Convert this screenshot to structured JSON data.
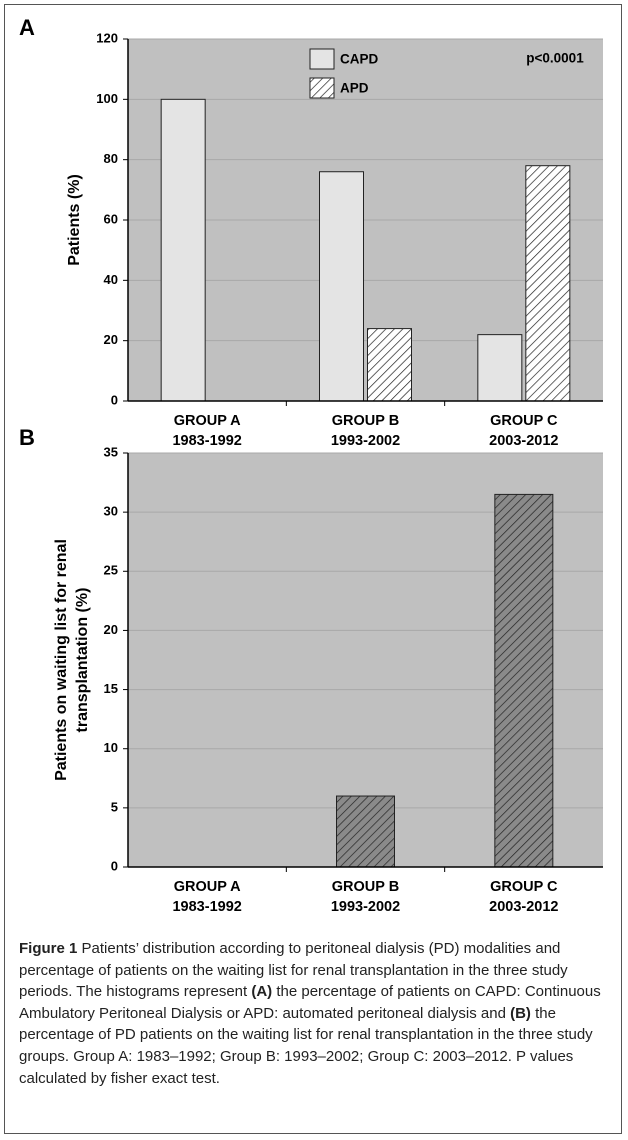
{
  "chart_data": [
    {
      "type": "bar",
      "panel": "A",
      "ylabel": [
        "Patients (%)"
      ],
      "annotation": "p<0.0001",
      "categories": [
        [
          "GROUP A",
          "1983-1992"
        ],
        [
          "GROUP B",
          "1993-2002"
        ],
        [
          "GROUP C",
          "2003-2012"
        ]
      ],
      "series": [
        {
          "name": "CAPD",
          "color": "#e4e4e4",
          "hatch": false,
          "values": [
            100,
            76,
            22
          ]
        },
        {
          "name": "APD",
          "color": "#ffffff",
          "hatch": true,
          "values": [
            0,
            24,
            78
          ]
        }
      ],
      "ylim": [
        0,
        120
      ],
      "yticks": [
        0,
        20,
        40,
        60,
        80,
        100,
        120
      ],
      "grid": true,
      "plot_background": "#c0c0c0"
    },
    {
      "type": "bar",
      "panel": "B",
      "ylabel": [
        "Patients on waiting list for renal",
        "transplantation (%)"
      ],
      "categories": [
        [
          "GROUP A",
          "1983-1992"
        ],
        [
          "GROUP B",
          "1993-2002"
        ],
        [
          "GROUP C",
          "2003-2012"
        ]
      ],
      "values": [
        0,
        6,
        31.5
      ],
      "color": "#8a8a8a",
      "hatch": true,
      "ylim": [
        0,
        35
      ],
      "yticks": [
        0,
        5,
        10,
        15,
        20,
        25,
        30,
        35
      ],
      "grid": true,
      "plot_background": "#c0c0c0"
    }
  ],
  "caption": [
    {
      "text": "Figure 1",
      "bold": true
    },
    {
      "text": " Patients’ distribution according to peritoneal dialysis (PD) modalities and percentage of patients on the waiting list for renal transplantation in the three study periods. The histograms represent ",
      "bold": false
    },
    {
      "text": "(A)",
      "bold": true
    },
    {
      "text": " the percentage of patients on CAPD: Continuous Ambulatory Peritoneal Dialysis or APD: automated peritoneal dialysis and ",
      "bold": false
    },
    {
      "text": "(B)",
      "bold": true
    },
    {
      "text": " the percentage of PD patients on the waiting list for renal transplantation in the three study groups. Group A: 1983–1992; Group B: 1993–2002; Group C: 2003–2012. P values calculated by fisher exact test.",
      "bold": false
    }
  ]
}
